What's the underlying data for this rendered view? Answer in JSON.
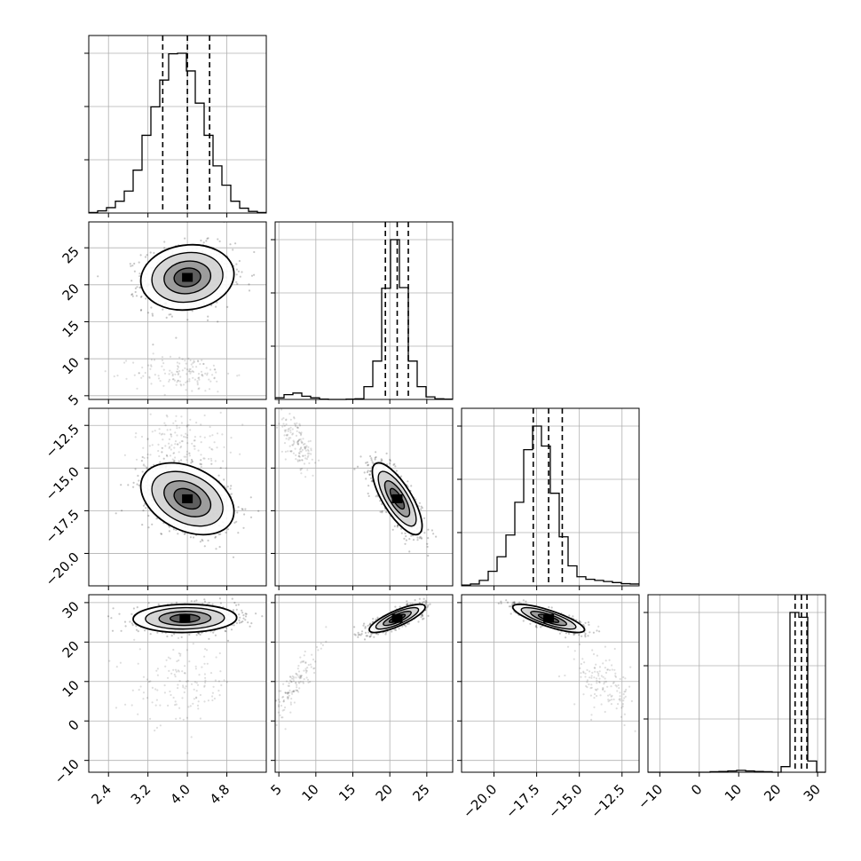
{
  "chart_data": {
    "type": "corner",
    "grid": true,
    "title": "",
    "parameters": [
      "",
      "",
      "",
      ""
    ],
    "quantile_lines": "dashed",
    "axes": [
      {
        "range": [
          2.0,
          5.6
        ],
        "ticks": [
          2.4,
          3.2,
          4.0,
          4.8
        ],
        "tick_labels": [
          "2.4",
          "3.2",
          "4.0",
          "4.8"
        ]
      },
      {
        "range": [
          4.5,
          28.5
        ],
        "ticks": [
          5,
          10,
          15,
          20,
          25
        ],
        "tick_labels": [
          "5",
          "10",
          "15",
          "20",
          "25"
        ]
      },
      {
        "range": [
          -21.9,
          -11.5
        ],
        "ticks": [
          -20.0,
          -17.5,
          -15.0,
          -12.5
        ],
        "tick_labels": [
          "−20.0",
          "−17.5",
          "−15.0",
          "−12.5"
        ]
      },
      {
        "range": [
          -13,
          32
        ],
        "ticks": [
          -10,
          0,
          10,
          20,
          30
        ],
        "tick_labels": [
          "−10",
          "0",
          "10",
          "20",
          "30"
        ]
      }
    ],
    "histograms": [
      {
        "param": 0,
        "bins": [
          2.0,
          2.18,
          2.36,
          2.54,
          2.72,
          2.9,
          3.08,
          3.26,
          3.44,
          3.62,
          3.8,
          3.98,
          4.16,
          4.34,
          4.52,
          4.7,
          4.88,
          5.06,
          5.24,
          5.42,
          5.6
        ],
        "counts": [
          1,
          4,
          10,
          22,
          41,
          80,
          145,
          198,
          248,
          297,
          298,
          265,
          205,
          145,
          88,
          52,
          22,
          9,
          3,
          1
        ],
        "quantiles": [
          3.5,
          4.0,
          4.45
        ]
      },
      {
        "param": 1,
        "bins": [
          4.5,
          5.7,
          6.9,
          8.1,
          9.3,
          10.5,
          11.7,
          12.9,
          14.1,
          15.3,
          16.5,
          17.7,
          18.9,
          20.1,
          21.3,
          22.5,
          23.7,
          24.9,
          26.1,
          27.3,
          28.5
        ],
        "counts": [
          5,
          15,
          20,
          10,
          5,
          1,
          0,
          0,
          1,
          2,
          40,
          120,
          348,
          500,
          350,
          120,
          40,
          8,
          2,
          1
        ],
        "quantiles": [
          19.4,
          21.0,
          22.5
        ]
      },
      {
        "param": 2,
        "bins": [
          -21.9,
          -21.38,
          -20.86,
          -20.34,
          -19.82,
          -19.3,
          -18.78,
          -18.26,
          -17.74,
          -17.22,
          -16.7,
          -16.18,
          -15.66,
          -15.14,
          -14.62,
          -14.1,
          -13.58,
          -13.06,
          -12.54,
          -12.02,
          -11.5
        ],
        "counts": [
          2,
          5,
          15,
          40,
          80,
          140,
          230,
          375,
          440,
          385,
          255,
          135,
          55,
          25,
          18,
          15,
          12,
          9,
          6,
          5
        ],
        "quantiles": [
          -17.7,
          -16.8,
          -16.0
        ]
      },
      {
        "param": 3,
        "bins": [
          -13,
          -10.75,
          -8.5,
          -6.25,
          -4.0,
          -1.75,
          0.5,
          2.75,
          5.0,
          7.25,
          9.5,
          11.75,
          14.0,
          16.25,
          18.5,
          20.75,
          23.0,
          25.25,
          27.5,
          29.75,
          32
        ],
        "counts": [
          0,
          0,
          0,
          0,
          0,
          0,
          0,
          3,
          5,
          8,
          12,
          8,
          5,
          3,
          0,
          35,
          1000,
          970,
          70,
          0
        ],
        "quantiles": [
          24.3,
          25.9,
          27.3
        ]
      }
    ],
    "scatter_panels": [
      {
        "x": 0,
        "y": 1,
        "clusters": [
          {
            "cx": 4.0,
            "cy": 21.0,
            "sx": 0.45,
            "sy": 2.1,
            "rho": 0.1
          },
          {
            "cx": 3.9,
            "cy": 8.0,
            "sx": 0.5,
            "sy": 1.3,
            "rho": 0.0
          }
        ],
        "contour_center": [
          4.0,
          21.0
        ]
      },
      {
        "x": 0,
        "y": 2,
        "clusters": [
          {
            "cx": 4.0,
            "cy": -16.8,
            "sx": 0.45,
            "sy": 1.0,
            "rho": -0.35
          },
          {
            "cx": 3.9,
            "cy": -13.5,
            "sx": 0.5,
            "sy": 0.9,
            "rho": 0.0
          }
        ],
        "contour_center": [
          4.0,
          -16.8
        ]
      },
      {
        "x": 0,
        "y": 3,
        "clusters": [
          {
            "cx": 4.0,
            "cy": 26.0,
            "sx": 0.5,
            "sy": 1.7,
            "rho": 0.05
          },
          {
            "cx": 3.9,
            "cy": 9.0,
            "sx": 0.5,
            "sy": 5.0,
            "rho": 0.0
          }
        ],
        "contour_center": [
          3.95,
          26.0
        ]
      },
      {
        "x": 1,
        "y": 2,
        "clusters": [
          {
            "cx": 21.0,
            "cy": -16.8,
            "sx": 1.6,
            "sy": 1.0,
            "rho": -0.75
          },
          {
            "cx": 7.5,
            "cy": -13.6,
            "sx": 1.2,
            "sy": 0.9,
            "rho": -0.6
          }
        ],
        "contour_center": [
          21.0,
          -16.8
        ]
      },
      {
        "x": 1,
        "y": 3,
        "clusters": [
          {
            "cx": 21.0,
            "cy": 26.0,
            "sx": 1.8,
            "sy": 1.7,
            "rho": 0.8
          },
          {
            "cx": 7.0,
            "cy": 9.0,
            "sx": 1.6,
            "sy": 4.5,
            "rho": 0.85
          }
        ],
        "contour_center": [
          21.0,
          26.0
        ]
      },
      {
        "x": 2,
        "y": 3,
        "clusters": [
          {
            "cx": -16.8,
            "cy": 26.0,
            "sx": 1.0,
            "sy": 1.7,
            "rho": -0.8
          },
          {
            "cx": -13.5,
            "cy": 9.0,
            "sx": 0.9,
            "sy": 4.0,
            "rho": -0.3
          }
        ],
        "contour_center": [
          -16.8,
          26.0
        ]
      }
    ]
  }
}
